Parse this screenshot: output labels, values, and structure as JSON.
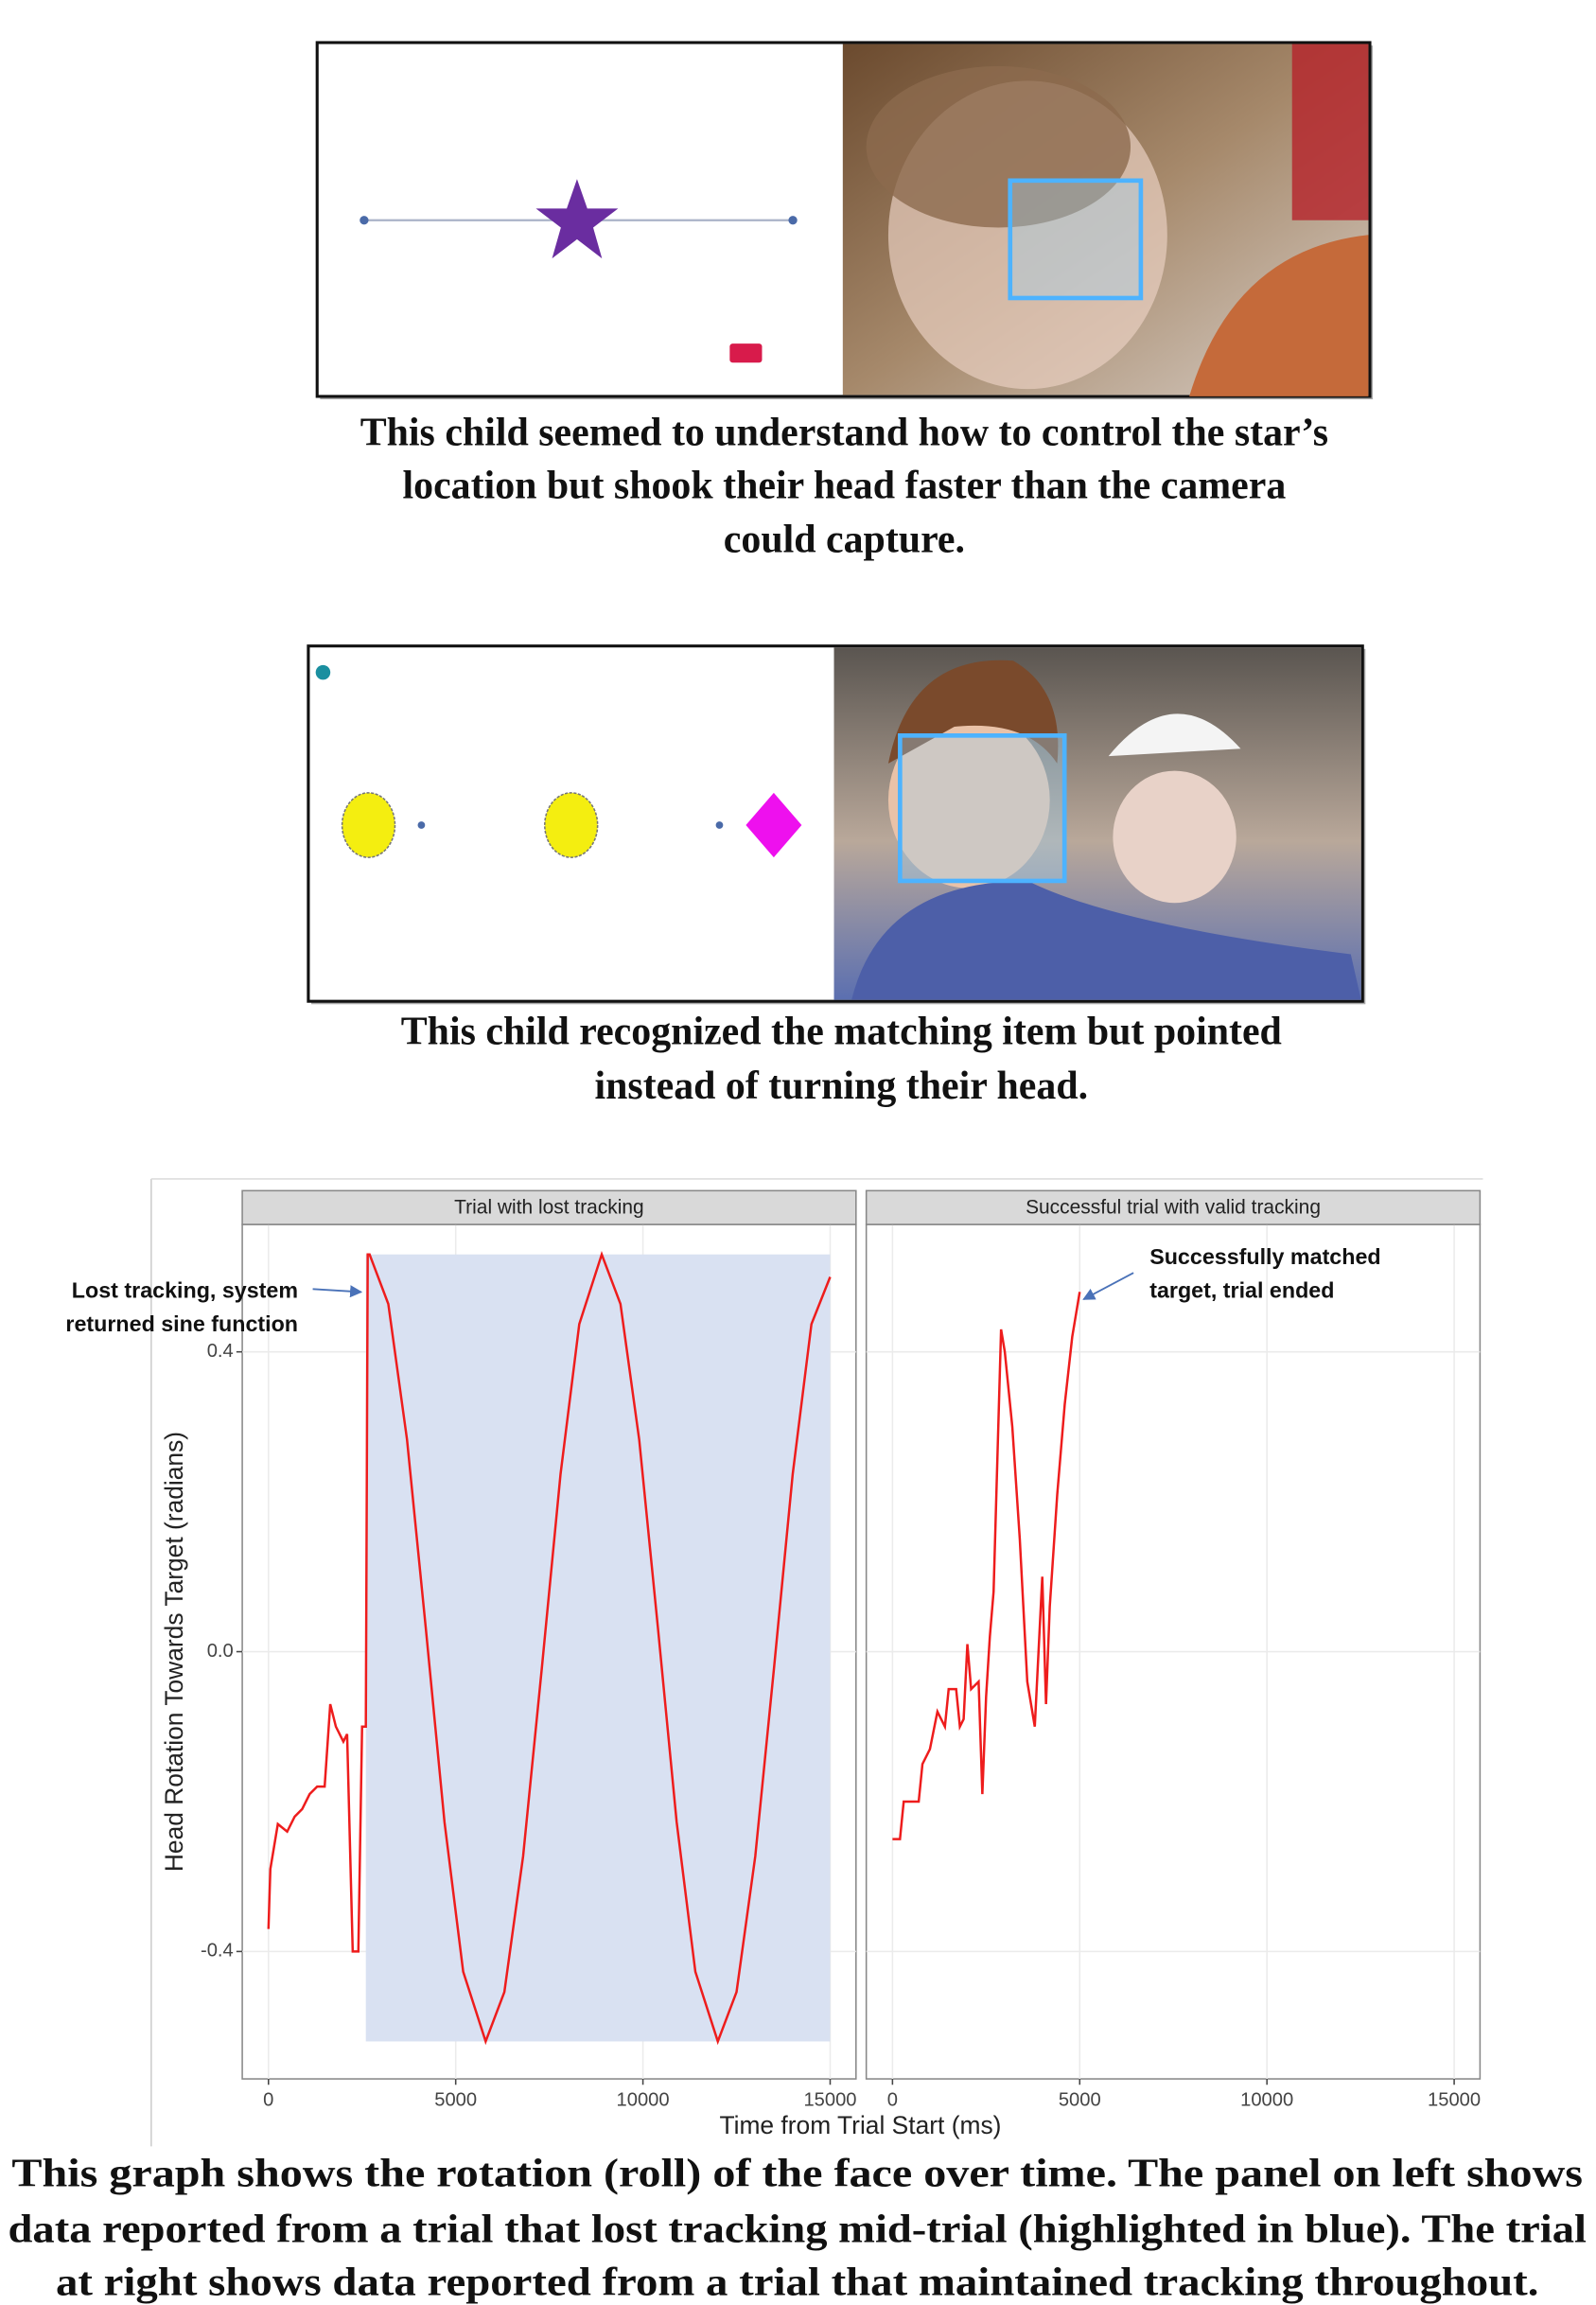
{
  "captions": [
    {
      "lines": [
        "This child seemed to understand how to control the star’s",
        "location but shook their head faster than the camera",
        "could capture."
      ]
    },
    {
      "lines": [
        "This child recognized the matching item but pointed",
        "instead of  turning their head."
      ]
    },
    {
      "lines": [
        "This graph shows the rotation (roll) of  the face over time. The panel on left shows",
        "data reported from a trial that lost tracking mid-trial (highlighted in blue). The trial",
        "at right shows data reported from a trial that maintained tracking throughout."
      ]
    }
  ],
  "chart_data": [
    {
      "type": "line",
      "title": "Trial with lost tracking",
      "xlabel": "Time from Trial Start (ms)",
      "ylabel": "Head Rotation Towards Target (radians)",
      "x": [
        0,
        50,
        250,
        500,
        700,
        900,
        1100,
        1300,
        1500,
        1650,
        1800,
        2000,
        2100,
        2250,
        2400,
        2500,
        2600,
        2650,
        2700,
        3200,
        3700,
        4200,
        4700,
        5200,
        5800,
        6300,
        6800,
        7300,
        7800,
        8300,
        8900,
        9400,
        9900,
        10400,
        10900,
        11400,
        12000,
        12500,
        13000,
        13500,
        14000,
        14500,
        15000
      ],
      "values": [
        -0.37,
        -0.29,
        -0.23,
        -0.24,
        -0.22,
        -0.21,
        -0.19,
        -0.18,
        -0.18,
        -0.07,
        -0.1,
        -0.12,
        -0.11,
        -0.4,
        -0.4,
        -0.1,
        -0.1,
        0.53,
        0.53,
        0.464,
        0.283,
        0.032,
        -0.227,
        -0.427,
        -0.52,
        -0.454,
        -0.273,
        -0.022,
        0.237,
        0.437,
        0.53,
        0.464,
        0.283,
        0.032,
        -0.227,
        -0.427,
        -0.52,
        -0.454,
        -0.273,
        -0.022,
        0.237,
        0.437,
        0.5
      ],
      "color": "#ee1c1c",
      "highlight": {
        "x": [
          2600,
          15000
        ],
        "y": [
          -0.52,
          0.53
        ],
        "color": "#d9e1f2"
      },
      "xlim": [
        -700,
        15690
      ],
      "xticks": [
        0,
        5000,
        10000,
        15000
      ],
      "ylim": [
        -0.57,
        0.57
      ],
      "yticks": [
        -0.4,
        {
          "value": 0,
          "label": "0.0"
        },
        0.4
      ],
      "grid": true,
      "annotation": [
        "Lost tracking, system",
        "returned sine function"
      ]
    },
    {
      "type": "line",
      "title": "Successful trial with valid tracking",
      "x": [
        0,
        200,
        300,
        700,
        800,
        1000,
        1200,
        1400,
        1500,
        1700,
        1800,
        1900,
        2000,
        2100,
        2300,
        2400,
        2500,
        2600,
        2700,
        2900,
        3000,
        3200,
        3400,
        3600,
        3800,
        4000,
        4100,
        4200,
        4400,
        4600,
        4800,
        5000
      ],
      "values": [
        -0.25,
        -0.25,
        -0.2,
        -0.2,
        -0.15,
        -0.13,
        -0.08,
        -0.1,
        -0.05,
        -0.05,
        -0.1,
        -0.09,
        0.01,
        -0.05,
        -0.04,
        -0.19,
        -0.06,
        0.02,
        0.08,
        0.43,
        0.4,
        0.3,
        0.15,
        -0.04,
        -0.1,
        0.1,
        -0.07,
        0.06,
        0.21,
        0.33,
        0.42,
        0.48
      ],
      "color": "#ee1c1c",
      "xlim": [
        -700,
        15690
      ],
      "xticks": [
        0,
        5000,
        10000,
        15000
      ],
      "grid": true,
      "annotation": [
        "Successfully matched",
        "target, trial ended"
      ]
    }
  ]
}
